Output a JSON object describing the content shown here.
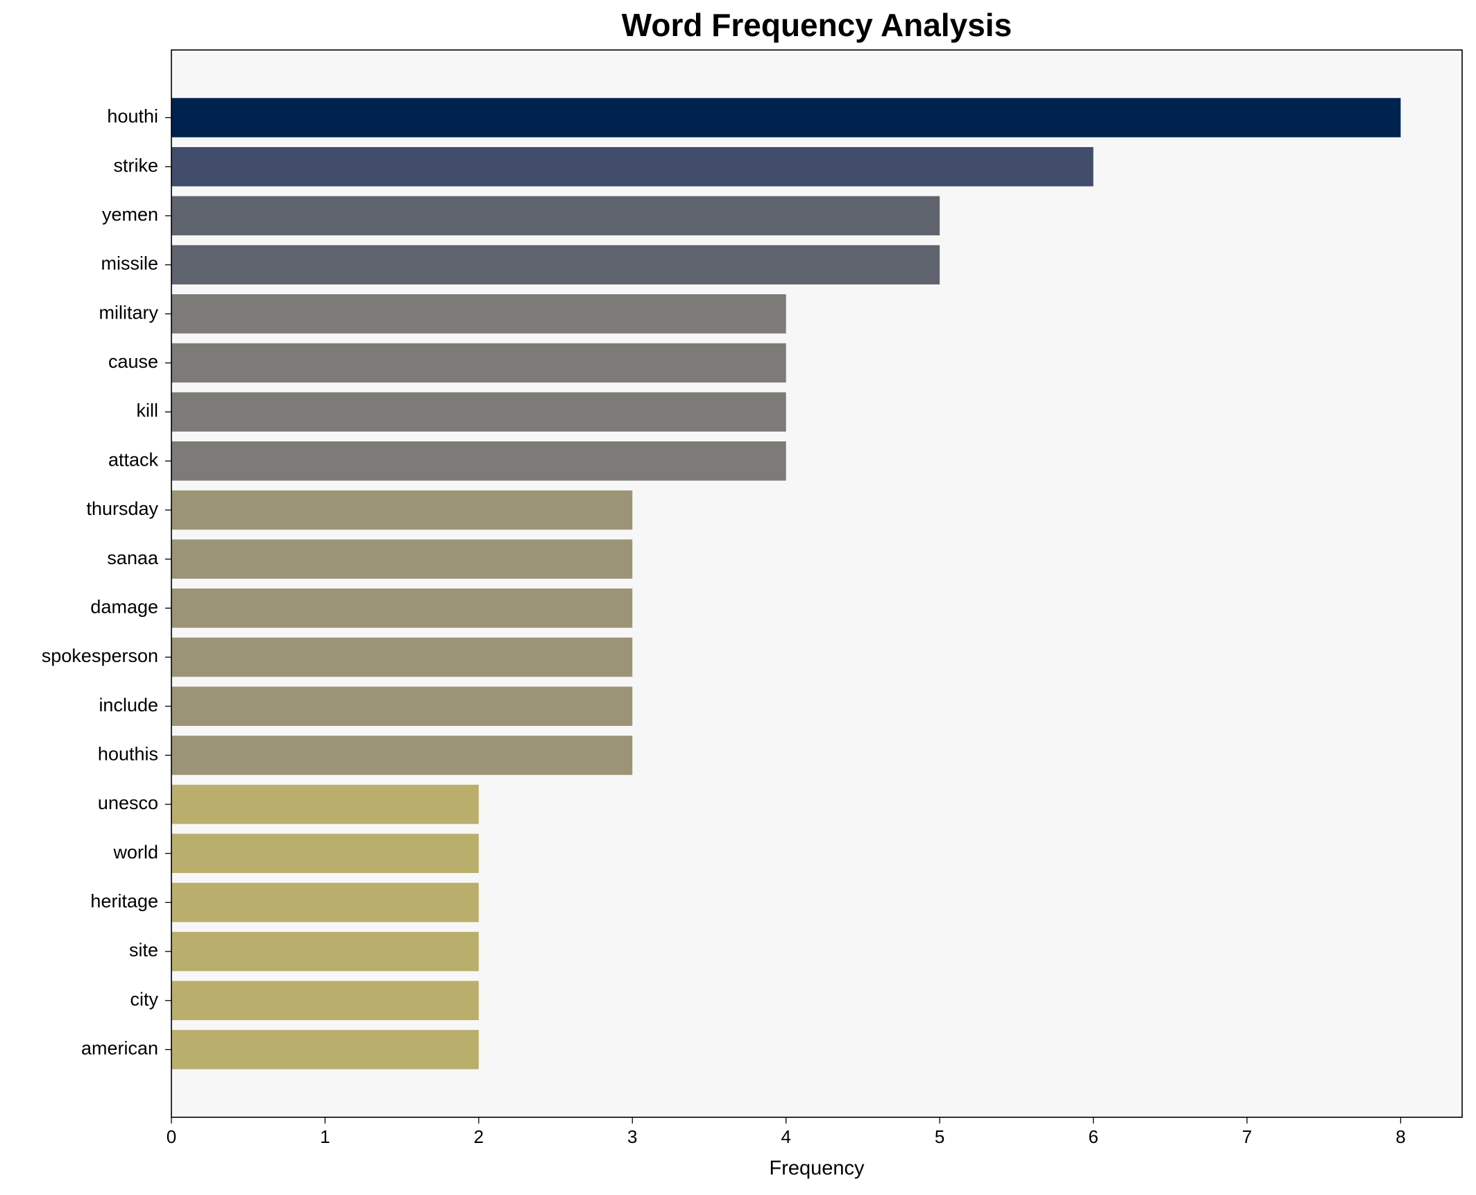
{
  "chart_data": {
    "type": "barh",
    "title": "Word Frequency Analysis",
    "x_label": "Frequency",
    "categories": [
      "houthi",
      "strike",
      "yemen",
      "missile",
      "military",
      "cause",
      "kill",
      "attack",
      "thursday",
      "sanaa",
      "damage",
      "spokesperson",
      "include",
      "houthis",
      "unesco",
      "world",
      "heritage",
      "site",
      "city",
      "american"
    ],
    "values": [
      8,
      6,
      5,
      5,
      4,
      4,
      4,
      4,
      3,
      3,
      3,
      3,
      3,
      3,
      2,
      2,
      2,
      2,
      2,
      2
    ],
    "colors": [
      "#00224e",
      "#414d6b",
      "#5f636e",
      "#5f636e",
      "#7c7b78",
      "#7c7b78",
      "#7c7b78",
      "#7c7b78",
      "#9b9477",
      "#9b9477",
      "#9b9477",
      "#9b9477",
      "#9b9477",
      "#9b9477",
      "#baae6c",
      "#baae6c",
      "#baae6c",
      "#baae6c",
      "#baae6c",
      "#baae6c"
    ],
    "xlim": [
      0,
      8.4
    ],
    "xticks": [
      0,
      1,
      2,
      3,
      4,
      5,
      6,
      7,
      8
    ],
    "grid": false
  }
}
